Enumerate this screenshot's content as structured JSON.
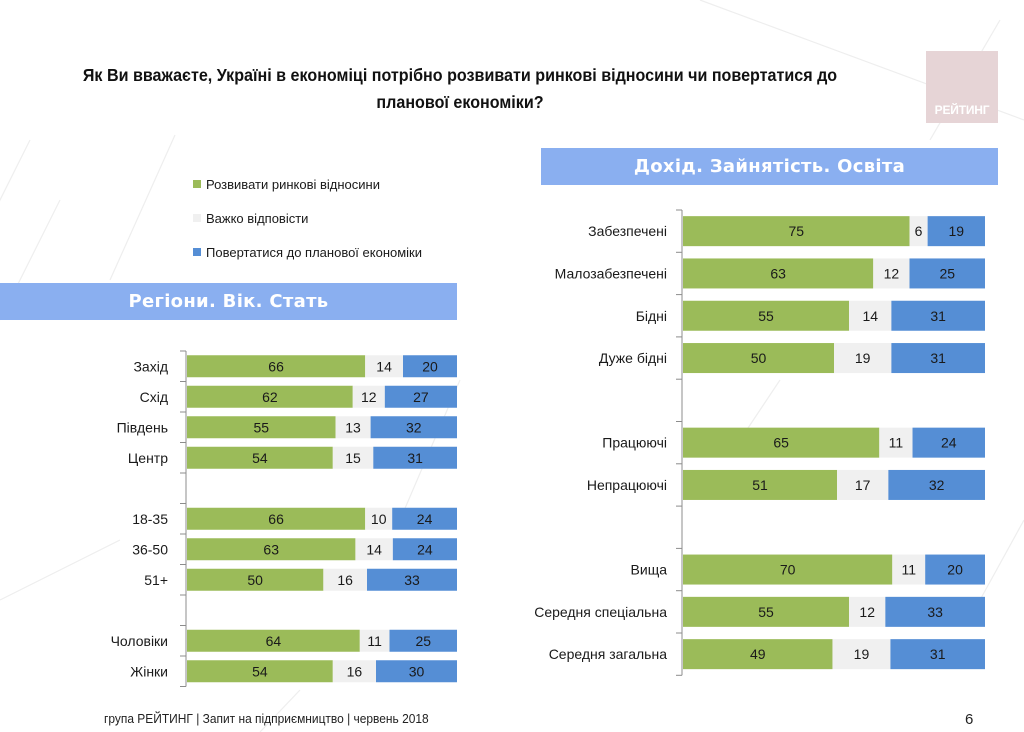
{
  "title": "Як Ви вважаєте, Україні в економіці потрібно розвивати ринкові відносини чи повертатися до планової економіки?",
  "title_lines": [
    "Як Ви вважаєте, Україні в економіці потрібно розвивати ринкові відносини чи повертатися до",
    "планової економіки?"
  ],
  "logo": {
    "text": "РЕЙТИНГ",
    "color": "#e6d4d6"
  },
  "legend": [
    {
      "label": "Розвивати ринкові відносини",
      "color": "#9bbb59"
    },
    {
      "label": "Важко відповісти",
      "color": "#f0f0f0"
    },
    {
      "label": "Повертатися до планової економіки",
      "color": "#558ed5"
    }
  ],
  "footer": {
    "source": "група РЕЙТИНГ | Запит на підприємництво | червень  2018",
    "page_number": "6"
  },
  "chart_data": [
    {
      "type": "bar",
      "orientation": "horizontal",
      "stacked": true,
      "title": "Регіони. Вік. Стать",
      "xlim": [
        0,
        100
      ],
      "grid": false,
      "legend": "top-left",
      "series_names": [
        "Розвивати ринкові відносини",
        "Важко відповісти",
        "Повертатися до планової економіки"
      ],
      "series_colors": [
        "#9bbb59",
        "#f0f0f0",
        "#558ed5"
      ],
      "groups": [
        {
          "rows": [
            {
              "label": "Захід",
              "values": [
                66,
                14,
                20
              ]
            },
            {
              "label": "Схід",
              "values": [
                62,
                12,
                27
              ]
            },
            {
              "label": "Південь",
              "values": [
                55,
                13,
                32
              ]
            },
            {
              "label": "Центр",
              "values": [
                54,
                15,
                31
              ]
            }
          ]
        },
        {
          "rows": [
            {
              "label": "18-35",
              "values": [
                66,
                10,
                24
              ]
            },
            {
              "label": "36-50",
              "values": [
                63,
                14,
                24
              ]
            },
            {
              "label": "51+",
              "values": [
                50,
                16,
                33
              ]
            }
          ]
        },
        {
          "rows": [
            {
              "label": "Чоловіки",
              "values": [
                64,
                11,
                25
              ]
            },
            {
              "label": "Жінки",
              "values": [
                54,
                16,
                30
              ]
            }
          ]
        }
      ]
    },
    {
      "type": "bar",
      "orientation": "horizontal",
      "stacked": true,
      "title": "Дохід. Зайнятість. Освіта",
      "xlim": [
        0,
        100
      ],
      "grid": false,
      "series_names": [
        "Розвивати ринкові відносини",
        "Важко відповісти",
        "Повертатися до планової економіки"
      ],
      "series_colors": [
        "#9bbb59",
        "#f0f0f0",
        "#558ed5"
      ],
      "groups": [
        {
          "rows": [
            {
              "label": "Забезпечені",
              "values": [
                75,
                6,
                19
              ]
            },
            {
              "label": "Малозабезпечені",
              "values": [
                63,
                12,
                25
              ]
            },
            {
              "label": "Бідні",
              "values": [
                55,
                14,
                31
              ]
            },
            {
              "label": "Дуже бідні",
              "values": [
                50,
                19,
                31
              ]
            }
          ]
        },
        {
          "rows": [
            {
              "label": "Працюючі",
              "values": [
                65,
                11,
                24
              ]
            },
            {
              "label": "Непрацюючі",
              "values": [
                51,
                17,
                32
              ]
            }
          ]
        },
        {
          "rows": [
            {
              "label": "Вища",
              "values": [
                70,
                11,
                20
              ]
            },
            {
              "label": "Середня спеціальна",
              "values": [
                55,
                12,
                33
              ]
            },
            {
              "label": "Середня загальна",
              "values": [
                49,
                19,
                31
              ]
            }
          ]
        }
      ]
    }
  ]
}
